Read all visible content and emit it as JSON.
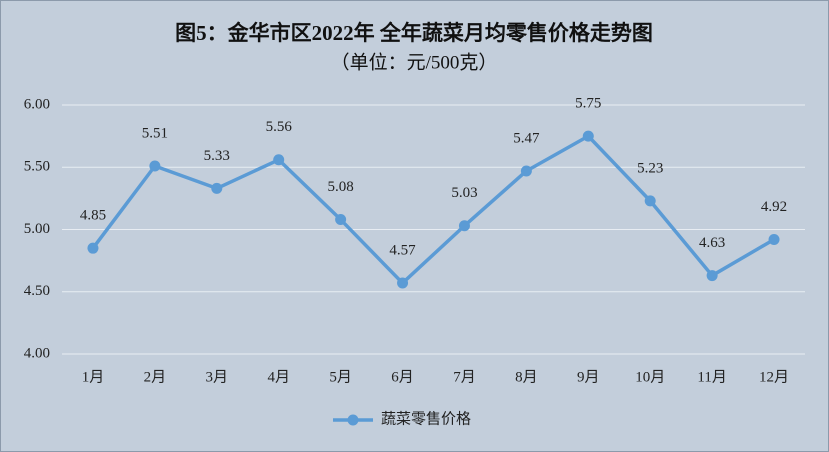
{
  "chart_data": {
    "type": "line",
    "title": "图5：金华市区2022年 全年蔬菜月均零售价格走势图",
    "subtitle": "（单位：元/500克）",
    "categories": [
      "1月",
      "2月",
      "3月",
      "4月",
      "5月",
      "6月",
      "7月",
      "8月",
      "9月",
      "10月",
      "11月",
      "12月"
    ],
    "series": [
      {
        "name": "蔬菜零售价格",
        "color": "#5b9bd5",
        "values": [
          4.85,
          5.51,
          5.33,
          5.56,
          5.08,
          4.57,
          5.03,
          5.47,
          5.75,
          5.23,
          4.63,
          4.92
        ]
      }
    ],
    "ylim": [
      4,
      6
    ],
    "yticks": [
      {
        "value": 4,
        "label": "4.00"
      },
      {
        "value": 4.5,
        "label": "4.50"
      },
      {
        "value": 5,
        "label": "5.00"
      },
      {
        "value": 5.5,
        "label": "5.50"
      },
      {
        "value": 6,
        "label": "6.00"
      }
    ],
    "grid": true,
    "legend": "bottom"
  }
}
